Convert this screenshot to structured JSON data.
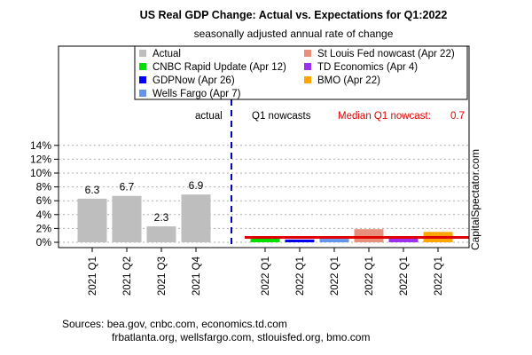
{
  "chart_data": {
    "type": "bar",
    "title": "US Real GDP Change: Actual vs. Expectations for Q1:2022",
    "subtitle": "seasonally adjusted annual rate of change",
    "ylim": [
      0,
      15
    ],
    "yticks": [
      0,
      2,
      4,
      6,
      8,
      10,
      12,
      14
    ],
    "ytick_labels": [
      "0%",
      "2%",
      "4%",
      "6%",
      "8%",
      "10%",
      "12%",
      "14%"
    ],
    "grid": true,
    "legend_position": "top-right",
    "categories": [
      "2021 Q1",
      "2021 Q2",
      "2021 Q3",
      "2021 Q4",
      "2022 Q1",
      "2022 Q1",
      "2022 Q1",
      "2022 Q1",
      "2022 Q1",
      "2022 Q1"
    ],
    "values": [
      6.3,
      6.7,
      2.3,
      6.9,
      0.6,
      0.4,
      0.5,
      1.9,
      0.6,
      1.5
    ],
    "bar_colors": [
      "#bebebe",
      "#bebebe",
      "#bebebe",
      "#bebebe",
      "#00dd00",
      "#0000ee",
      "#6495ed",
      "#e8907c",
      "#9b30f0",
      "#ffa500"
    ],
    "value_labels": [
      "6.3",
      "6.7",
      "2.3",
      "6.9",
      null,
      null,
      null,
      null,
      null,
      null
    ],
    "series": [
      {
        "name": "Actual",
        "color": "#bebebe"
      },
      {
        "name": "St Louis Fed nowcast (Apr 22)",
        "color": "#e8907c"
      },
      {
        "name": "CNBC Rapid Update (Apr 12)",
        "color": "#00dd00"
      },
      {
        "name": "TD Economics (Apr 4)",
        "color": "#9b30f0"
      },
      {
        "name": "GDPNow (Apr 26)",
        "color": "#0000ee"
      },
      {
        "name": "BMO (Apr 22)",
        "color": "#ffa500"
      },
      {
        "name": "Wells Fargo (Apr 7)",
        "color": "#6495ed"
      }
    ],
    "median_line": {
      "value": 0.7,
      "color": "#e00000"
    },
    "annotations": {
      "actual_label": "actual",
      "nowcasts_label": "Q1 nowcasts",
      "median_label": "Median Q1 nowcast:",
      "median_value": "0.7"
    },
    "separator_color": "#0000cc"
  },
  "watermark": "CapitalSpectator.com",
  "sources": {
    "line1": "Sources: bea.gov, cnbc.com, economics.td.com",
    "line2": "frbatlanta.org, wellsfargo.com, stlouisfed.org, bmo.com"
  }
}
